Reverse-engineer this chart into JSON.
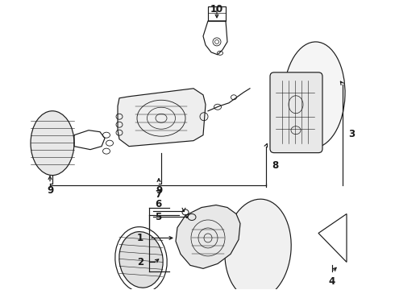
{
  "bg_color": "#ffffff",
  "line_color": "#1a1a1a",
  "fig_width": 4.9,
  "fig_height": 3.6,
  "dpi": 100,
  "fontsize": 8.5
}
